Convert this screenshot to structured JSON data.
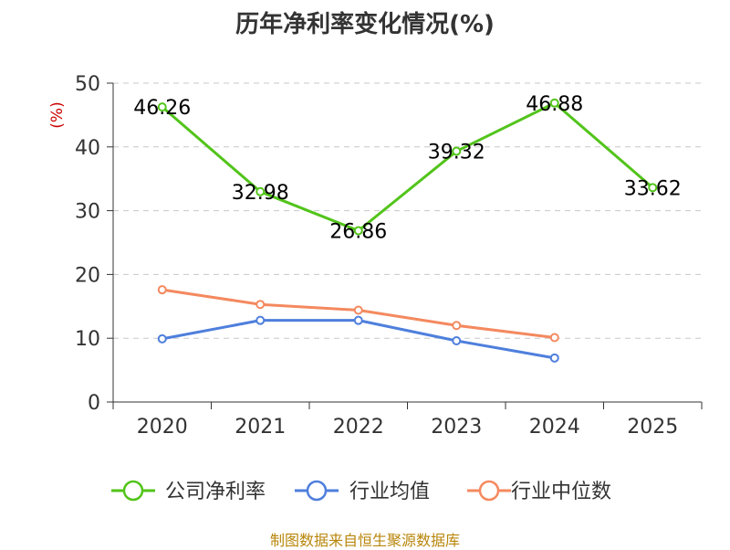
{
  "chart_data": {
    "type": "line",
    "title": "历年净利率变化情况(%)",
    "ylabel": "(%)",
    "xlabel": "",
    "categories": [
      "2020",
      "2021",
      "2022",
      "2023",
      "2024",
      "2025"
    ],
    "ylim": [
      0,
      50
    ],
    "yticks": [
      0,
      10,
      20,
      30,
      40,
      50
    ],
    "grid": true,
    "legend_position": "bottom",
    "series": [
      {
        "name": "公司净利率",
        "color": "#52c41a",
        "values": [
          46.26,
          32.98,
          26.86,
          39.32,
          46.88,
          33.62
        ],
        "labels": [
          "46.26",
          "32.98",
          "26.86",
          "39.32",
          "46.88",
          "33.62"
        ]
      },
      {
        "name": "行业均值",
        "color": "#4e7fdc",
        "values": [
          9.9,
          12.8,
          12.8,
          9.6,
          6.9,
          null
        ]
      },
      {
        "name": "行业中位数",
        "color": "#f4895f",
        "values": [
          17.6,
          15.3,
          14.4,
          12.0,
          10.1,
          null
        ]
      }
    ]
  },
  "source": "制图数据来自恒生聚源数据库"
}
